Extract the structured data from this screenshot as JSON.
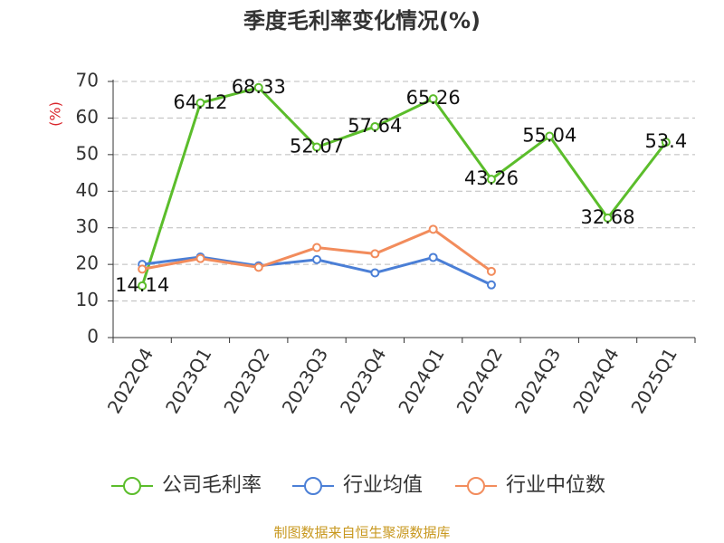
{
  "chart_data": {
    "type": "line",
    "title": "季度毛利率变化情况(%)",
    "y_label": "(%)",
    "source": "制图数据来自恒生聚源数据库",
    "categories": [
      "2022Q4",
      "2023Q1",
      "2023Q2",
      "2023Q3",
      "2023Q4",
      "2024Q1",
      "2024Q2",
      "2024Q3",
      "2024Q4",
      "2025Q1"
    ],
    "series": [
      {
        "name": "公司毛利率",
        "color": "#5bbd2b",
        "values": [
          14.14,
          64.12,
          68.33,
          52.07,
          57.64,
          65.26,
          43.26,
          55.04,
          32.68,
          53.4
        ],
        "data_labels": true
      },
      {
        "name": "行业均值",
        "color": "#4b7fd6",
        "values": [
          20.0,
          22.0,
          19.6,
          21.3,
          17.7,
          21.9,
          14.4,
          null,
          null,
          null
        ]
      },
      {
        "name": "行业中位数",
        "color": "#f28c5c",
        "values": [
          18.7,
          21.6,
          19.2,
          24.6,
          22.9,
          29.6,
          18.1,
          null,
          null,
          null
        ]
      }
    ],
    "ylim": [
      0,
      70
    ],
    "yticks": [
      0,
      10,
      20,
      30,
      40,
      50,
      60,
      70
    ],
    "grid": true,
    "legend": "bottom"
  }
}
